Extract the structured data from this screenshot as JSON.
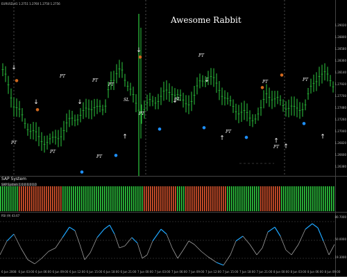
{
  "main": {
    "symbol_line": "EURUSD,H1  1.2751 1.2760 1.2750 1.2756",
    "headline": "Awesome Rabbit",
    "price_labels": [
      "1.29020",
      "1.28800",
      "1.28580",
      "1.28360",
      "1.28140",
      "1.27920",
      "1.27700",
      "1.27480",
      "1.27260",
      "1.27040",
      "1.26820",
      "1.26600",
      "1.26380"
    ]
  },
  "sap": {
    "title": "SAP System",
    "info": "SAP System  1 0.0 0.0 0.0"
  },
  "rsi": {
    "info": "RSI (9)  43.67  ",
    "levels": [
      "80.7000",
      "50.0000",
      "19.3000"
    ]
  },
  "time_axis": [
    "6 Jun 2008",
    "6 Jun 03:00",
    "6 Jun 06:00",
    "6 Jun 09:00",
    "6 Jun 12:00",
    "6 Jun 15:00",
    "6 Jun 18:00",
    "6 Jun 21:00",
    "7 Jun 00:00",
    "7 Jun 03:00",
    "7 Jun 06:00",
    "7 Jun 09:00",
    "7 Jun 12:00",
    "7 Jun 15:00",
    "7 Jun 18:00",
    "7 Jun 21:00",
    "8 Jun 00:00",
    "8 Jun 03:00",
    "8 Jun 06:00",
    "8 Jun 09:00"
  ],
  "colors": {
    "bull": "#2ecc40",
    "bear": "#e2582f",
    "rsi_high": "#1ea7ff",
    "rsi_low": "#9e9e9e"
  }
}
